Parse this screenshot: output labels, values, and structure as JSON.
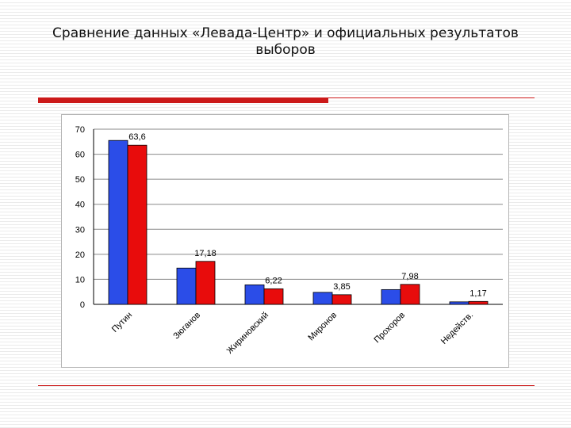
{
  "title_line1": "Сравнение данных «Левада-Центр» и официальных результатов",
  "title_line2": "выборов",
  "chart_data": {
    "type": "bar",
    "categories": [
      "Путин",
      "Зюганов",
      "Жириновский",
      "Миронов",
      "Прохоров",
      "Недейств."
    ],
    "series": [
      {
        "color": "#2b4de8",
        "values": [
          65.5,
          14.5,
          7.8,
          4.8,
          5.9,
          1.0
        ]
      },
      {
        "color": "#e80c0c",
        "values": [
          63.6,
          17.18,
          6.22,
          3.85,
          7.98,
          1.17
        ]
      }
    ],
    "data_labels": [
      "63,6",
      "17,18",
      "6,22",
      "3,85",
      "7,98",
      "1,17"
    ],
    "y_ticks": [
      "0",
      "10",
      "20",
      "30",
      "40",
      "50",
      "60",
      "70"
    ],
    "ylim": [
      0,
      70
    ],
    "grid": true
  }
}
